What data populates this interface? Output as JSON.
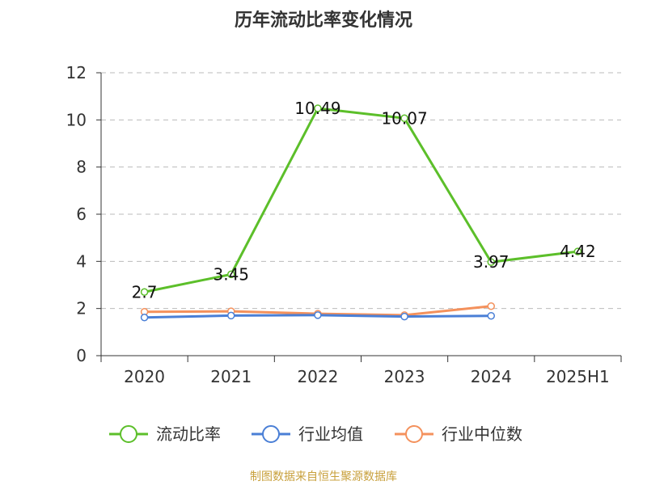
{
  "chart_data": {
    "type": "line",
    "title": "历年流动比率变化情况",
    "categories": [
      "2020",
      "2021",
      "2022",
      "2023",
      "2024",
      "2025H1"
    ],
    "ylim": [
      0,
      12
    ],
    "yticks": [
      0,
      2,
      4,
      6,
      8,
      10,
      12
    ],
    "grid": "horizontal-dashed",
    "legend_position": "bottom",
    "series": [
      {
        "name": "流动比率",
        "color": "#5cbf2a",
        "values": [
          2.7,
          3.45,
          10.49,
          10.07,
          3.97,
          4.42
        ],
        "labels": [
          "2.7",
          "3.45",
          "10.49",
          "10.07",
          "3.97",
          "4.42"
        ]
      },
      {
        "name": "行业均值",
        "color": "#4a7fd6",
        "values": [
          1.62,
          1.7,
          1.72,
          1.66,
          1.69,
          null
        ]
      },
      {
        "name": "行业中位数",
        "color": "#f4915c",
        "values": [
          1.86,
          1.88,
          1.78,
          1.72,
          2.1,
          null
        ]
      }
    ]
  },
  "source_text": "制图数据来自恒生聚源数据库"
}
